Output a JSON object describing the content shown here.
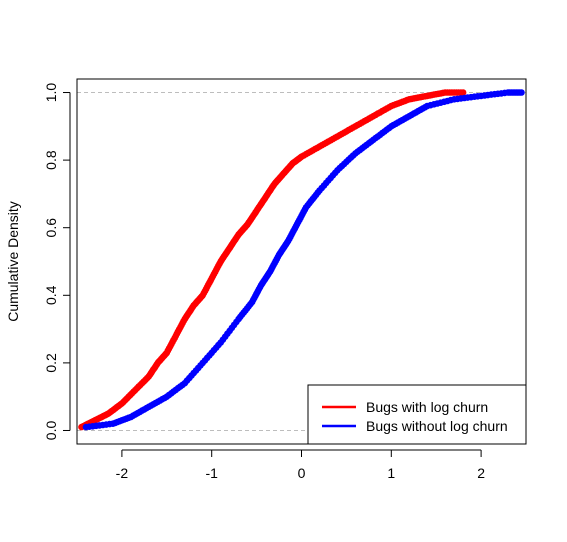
{
  "chart_data": {
    "type": "line",
    "title": "",
    "xlabel": "",
    "ylabel": "Cumulative Density",
    "xlim": [
      -2.5,
      2.5
    ],
    "ylim": [
      -0.04,
      1.04
    ],
    "x_ticks": [
      "-2",
      "-1",
      "0",
      "1",
      "2"
    ],
    "y_ticks": [
      "0.0",
      "0.2",
      "0.4",
      "0.6",
      "0.8",
      "1.0"
    ],
    "reference_lines_y": [
      0,
      1
    ],
    "grid": false,
    "legend_position": "bottom-right",
    "series": [
      {
        "name": "Bugs with log churn",
        "color": "#ff0000",
        "x": [
          -2.45,
          -2.3,
          -2.15,
          -2.0,
          -1.85,
          -1.7,
          -1.6,
          -1.5,
          -1.4,
          -1.3,
          -1.2,
          -1.1,
          -1.0,
          -0.9,
          -0.8,
          -0.7,
          -0.6,
          -0.5,
          -0.4,
          -0.3,
          -0.2,
          -0.1,
          0.0,
          0.2,
          0.4,
          0.6,
          0.8,
          1.0,
          1.2,
          1.4,
          1.6,
          1.8
        ],
        "y": [
          0.01,
          0.03,
          0.05,
          0.08,
          0.12,
          0.16,
          0.2,
          0.23,
          0.28,
          0.33,
          0.37,
          0.4,
          0.45,
          0.5,
          0.54,
          0.58,
          0.61,
          0.65,
          0.69,
          0.73,
          0.76,
          0.79,
          0.81,
          0.84,
          0.87,
          0.9,
          0.93,
          0.96,
          0.98,
          0.99,
          1.0,
          1.0
        ]
      },
      {
        "name": "Bugs without log churn",
        "color": "#0000ff",
        "x": [
          -2.4,
          -2.1,
          -1.9,
          -1.7,
          -1.5,
          -1.3,
          -1.1,
          -0.9,
          -0.7,
          -0.55,
          -0.45,
          -0.35,
          -0.25,
          -0.15,
          -0.05,
          0.05,
          0.2,
          0.4,
          0.6,
          0.8,
          1.0,
          1.2,
          1.4,
          1.7,
          2.0,
          2.3,
          2.45
        ],
        "y": [
          0.01,
          0.02,
          0.04,
          0.07,
          0.1,
          0.14,
          0.2,
          0.26,
          0.33,
          0.38,
          0.43,
          0.47,
          0.52,
          0.56,
          0.61,
          0.66,
          0.71,
          0.77,
          0.82,
          0.86,
          0.9,
          0.93,
          0.96,
          0.98,
          0.99,
          1.0,
          1.0
        ]
      }
    ]
  }
}
